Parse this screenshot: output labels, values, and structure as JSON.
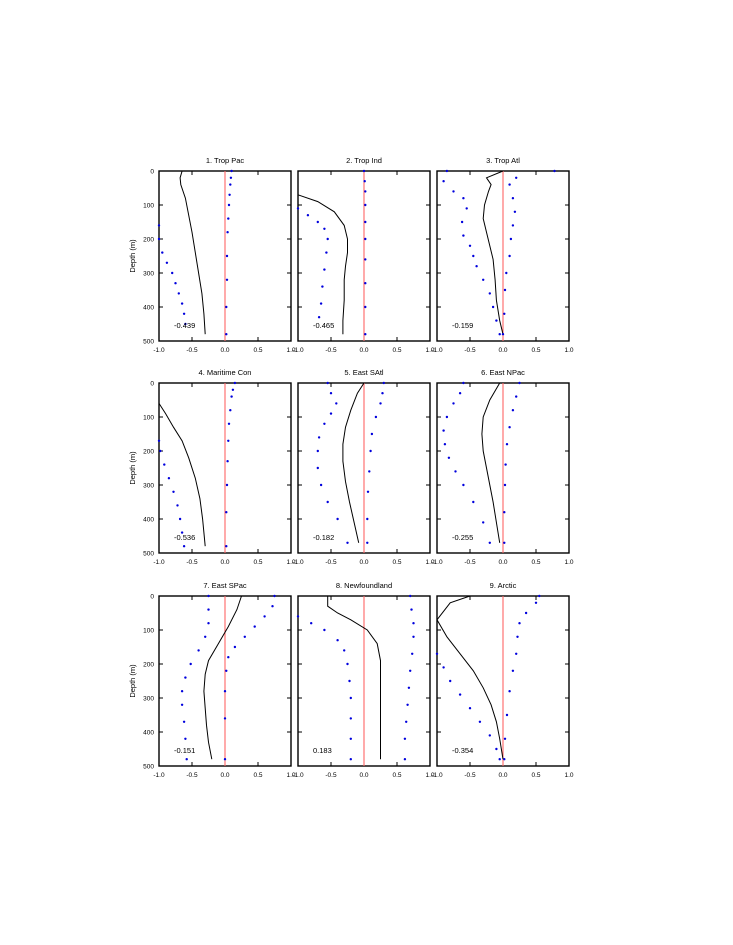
{
  "chart_data": [
    {
      "type": "line",
      "title": "1. Trop Pac",
      "ylabel": "Depth (m)",
      "xlabel": "",
      "xlim": [
        -1,
        1
      ],
      "ylim": [
        500,
        0
      ],
      "xticks": [
        "-1.0",
        "-0.5",
        "0.0",
        "0.5",
        "1.0"
      ],
      "yticks": [
        "0",
        "100",
        "200",
        "300",
        "400",
        "500"
      ],
      "annotation": "-0.439",
      "zero_line_color": "#ff6666",
      "series": [
        {
          "style": "solid",
          "color": "#000000",
          "x": [
            -0.65,
            -0.68,
            -0.67,
            -0.6,
            -0.55,
            -0.5,
            -0.45,
            -0.4,
            -0.35,
            -0.32,
            -0.3
          ],
          "y": [
            0,
            20,
            40,
            80,
            130,
            180,
            240,
            300,
            360,
            420,
            480
          ]
        },
        {
          "style": "dotted",
          "color": "#0000dd",
          "x": [
            -1.0,
            -1.0,
            -0.95,
            -0.88,
            -0.8,
            -0.75,
            -0.7,
            -0.65,
            -0.62,
            -0.6
          ],
          "y": [
            160,
            200,
            240,
            270,
            300,
            330,
            360,
            390,
            420,
            450
          ]
        },
        {
          "style": "dotted",
          "color": "#0000dd",
          "x": [
            0.1,
            0.09,
            0.08,
            0.07,
            0.06,
            0.05,
            0.04,
            0.03,
            0.03,
            0.02,
            0.02
          ],
          "y": [
            0,
            20,
            40,
            70,
            100,
            140,
            180,
            250,
            320,
            400,
            480
          ]
        }
      ]
    },
    {
      "type": "line",
      "title": "2. Trop Ind",
      "ylabel": "",
      "xlabel": "",
      "xlim": [
        -1,
        1
      ],
      "ylim": [
        500,
        0
      ],
      "xticks": [
        "-1.0",
        "-0.5",
        "0.0",
        "0.5",
        "1.0"
      ],
      "yticks": [],
      "annotation": "-0.465",
      "zero_line_color": "#ff6666",
      "series": [
        {
          "style": "solid",
          "color": "#000000",
          "x": [
            -1.0,
            -0.7,
            -0.45,
            -0.3,
            -0.25,
            -0.25,
            -0.28,
            -0.3,
            -0.3,
            -0.32,
            -0.32
          ],
          "y": [
            70,
            90,
            120,
            160,
            200,
            240,
            280,
            320,
            380,
            440,
            480
          ]
        },
        {
          "style": "dotted",
          "color": "#0000dd",
          "x": [
            -1.0,
            -0.85,
            -0.7,
            -0.6,
            -0.55,
            -0.57,
            -0.6,
            -0.63,
            -0.65,
            -0.68
          ],
          "y": [
            110,
            130,
            150,
            170,
            200,
            240,
            290,
            340,
            390,
            430
          ]
        },
        {
          "style": "dotted",
          "color": "#0000dd",
          "x": [
            0.0,
            0.01,
            0.02,
            0.02,
            0.02,
            0.02,
            0.02,
            0.02,
            0.02,
            0.02
          ],
          "y": [
            0,
            30,
            60,
            100,
            150,
            200,
            260,
            330,
            400,
            480
          ]
        }
      ]
    },
    {
      "type": "line",
      "title": "3. Trop Atl",
      "ylabel": "",
      "xlabel": "",
      "xlim": [
        -1,
        1
      ],
      "ylim": [
        500,
        0
      ],
      "xticks": [
        "-1.0",
        "-0.5",
        "0.0",
        "0.5",
        "1.0"
      ],
      "yticks": [],
      "annotation": "-0.159",
      "zero_line_color": "#ff6666",
      "series": [
        {
          "style": "solid",
          "color": "#000000",
          "x": [
            0.0,
            -0.25,
            -0.18,
            -0.22,
            -0.28,
            -0.3,
            -0.25,
            -0.15,
            -0.12,
            -0.1,
            -0.05,
            0.0
          ],
          "y": [
            0,
            20,
            40,
            60,
            100,
            140,
            180,
            260,
            320,
            380,
            440,
            480
          ]
        },
        {
          "style": "dotted",
          "color": "#0000dd",
          "x": [
            -0.85,
            -0.9,
            -0.75,
            -0.6,
            -0.55,
            -0.62,
            -0.6,
            -0.5,
            -0.45,
            -0.4,
            -0.3,
            -0.2,
            -0.15,
            -0.1,
            -0.05
          ],
          "y": [
            0,
            30,
            60,
            80,
            110,
            150,
            190,
            220,
            250,
            280,
            320,
            360,
            400,
            440,
            480
          ]
        },
        {
          "style": "dotted",
          "color": "#0000dd",
          "x": [
            0.78,
            0.2,
            0.1,
            0.15,
            0.18,
            0.15,
            0.12,
            0.1,
            0.05,
            0.03,
            0.02,
            0.0
          ],
          "y": [
            0,
            20,
            40,
            80,
            120,
            160,
            200,
            250,
            300,
            350,
            420,
            480
          ]
        }
      ]
    },
    {
      "type": "line",
      "title": "4. Maritime Con",
      "ylabel": "Depth (m)",
      "xlabel": "",
      "xlim": [
        -1,
        1
      ],
      "ylim": [
        500,
        0
      ],
      "xticks": [
        "-1.0",
        "-0.5",
        "0.0",
        "0.5",
        "1.0"
      ],
      "yticks": [
        "0",
        "100",
        "200",
        "300",
        "400",
        "500"
      ],
      "annotation": "-0.536",
      "zero_line_color": "#ff6666",
      "series": [
        {
          "style": "solid",
          "color": "#000000",
          "x": [
            -1.0,
            -0.9,
            -0.78,
            -0.65,
            -0.55,
            -0.45,
            -0.38,
            -0.34,
            -0.32,
            -0.3
          ],
          "y": [
            60,
            90,
            130,
            170,
            220,
            280,
            340,
            400,
            440,
            480
          ]
        },
        {
          "style": "dotted",
          "color": "#0000dd",
          "x": [
            -1.0,
            -0.98,
            -0.92,
            -0.85,
            -0.78,
            -0.72,
            -0.68,
            -0.65,
            -0.62
          ],
          "y": [
            170,
            200,
            240,
            280,
            320,
            360,
            400,
            440,
            480
          ]
        },
        {
          "style": "dotted",
          "color": "#0000dd",
          "x": [
            0.15,
            0.12,
            0.1,
            0.08,
            0.06,
            0.05,
            0.04,
            0.03,
            0.02,
            0.02
          ],
          "y": [
            0,
            20,
            40,
            80,
            120,
            170,
            230,
            300,
            380,
            480
          ]
        }
      ]
    },
    {
      "type": "line",
      "title": "5. East SAtl",
      "ylabel": "",
      "xlabel": "",
      "xlim": [
        -1,
        1
      ],
      "ylim": [
        500,
        0
      ],
      "xticks": [
        "-1.0",
        "-0.5",
        "0.0",
        "0.5",
        "1.0"
      ],
      "yticks": [],
      "annotation": "-0.182",
      "zero_line_color": "#ff6666",
      "series": [
        {
          "style": "solid",
          "color": "#000000",
          "x": [
            0.0,
            -0.1,
            -0.2,
            -0.28,
            -0.32,
            -0.32,
            -0.28,
            -0.22,
            -0.15,
            -0.08
          ],
          "y": [
            0,
            30,
            80,
            130,
            180,
            230,
            290,
            350,
            410,
            470
          ]
        },
        {
          "style": "dotted",
          "color": "#0000dd",
          "x": [
            -0.55,
            -0.5,
            -0.42,
            -0.5,
            -0.6,
            -0.68,
            -0.7,
            -0.7,
            -0.65,
            -0.55,
            -0.4,
            -0.25
          ],
          "y": [
            0,
            30,
            60,
            90,
            120,
            160,
            200,
            250,
            300,
            350,
            400,
            470
          ]
        },
        {
          "style": "dotted",
          "color": "#0000dd",
          "x": [
            0.3,
            0.28,
            0.25,
            0.18,
            0.12,
            0.1,
            0.08,
            0.06,
            0.05,
            0.05
          ],
          "y": [
            0,
            30,
            60,
            100,
            150,
            200,
            260,
            320,
            400,
            470
          ]
        }
      ]
    },
    {
      "type": "line",
      "title": "6. East NPac",
      "ylabel": "",
      "xlabel": "",
      "xlim": [
        -1,
        1
      ],
      "ylim": [
        500,
        0
      ],
      "xticks": [
        "-1.0",
        "-0.5",
        "0.0",
        "0.5",
        "1.0"
      ],
      "yticks": [],
      "annotation": "-0.255",
      "zero_line_color": "#ff6666",
      "series": [
        {
          "style": "solid",
          "color": "#000000",
          "x": [
            -0.05,
            -0.2,
            -0.3,
            -0.32,
            -0.3,
            -0.25,
            -0.2,
            -0.15,
            -0.1,
            -0.05
          ],
          "y": [
            0,
            50,
            100,
            150,
            200,
            250,
            300,
            350,
            410,
            470
          ]
        },
        {
          "style": "dotted",
          "color": "#0000dd",
          "x": [
            -0.6,
            -0.65,
            -0.75,
            -0.85,
            -0.9,
            -0.88,
            -0.82,
            -0.72,
            -0.6,
            -0.45,
            -0.3,
            -0.2
          ],
          "y": [
            0,
            30,
            60,
            100,
            140,
            180,
            220,
            260,
            300,
            350,
            410,
            470
          ]
        },
        {
          "style": "dotted",
          "color": "#0000dd",
          "x": [
            0.25,
            0.2,
            0.15,
            0.1,
            0.06,
            0.04,
            0.03,
            0.02,
            0.02
          ],
          "y": [
            0,
            40,
            80,
            130,
            180,
            240,
            300,
            380,
            470
          ]
        }
      ]
    },
    {
      "type": "line",
      "title": "7. East SPac",
      "ylabel": "Depth (m)",
      "xlabel": "",
      "xlim": [
        -1,
        1
      ],
      "ylim": [
        500,
        0
      ],
      "xticks": [
        "-1.0",
        "-0.5",
        "0.0",
        "0.5",
        "1.0"
      ],
      "yticks": [
        "0",
        "100",
        "200",
        "300",
        "400",
        "500"
      ],
      "annotation": "-0.151",
      "zero_line_color": "#ff6666",
      "series": [
        {
          "style": "solid",
          "color": "#000000",
          "x": [
            0.25,
            0.18,
            0.05,
            -0.1,
            -0.25,
            -0.3,
            -0.32,
            -0.3,
            -0.28,
            -0.25,
            -0.2
          ],
          "y": [
            0,
            40,
            90,
            140,
            190,
            230,
            280,
            330,
            380,
            430,
            480
          ]
        },
        {
          "style": "dotted",
          "color": "#0000dd",
          "x": [
            -0.25,
            -0.25,
            -0.25,
            -0.3,
            -0.4,
            -0.52,
            -0.6,
            -0.65,
            -0.65,
            -0.62,
            -0.6,
            -0.58
          ],
          "y": [
            0,
            40,
            80,
            120,
            160,
            200,
            240,
            280,
            320,
            370,
            420,
            480
          ]
        },
        {
          "style": "dotted",
          "color": "#0000dd",
          "x": [
            0.75,
            0.72,
            0.6,
            0.45,
            0.3,
            0.15,
            0.05,
            0.02,
            0.0,
            0.0,
            0.0
          ],
          "y": [
            0,
            30,
            60,
            90,
            120,
            150,
            180,
            220,
            280,
            360,
            480
          ]
        }
      ]
    },
    {
      "type": "line",
      "title": "8. Newfoundland",
      "ylabel": "",
      "xlabel": "",
      "xlim": [
        -1,
        1
      ],
      "ylim": [
        500,
        0
      ],
      "xticks": [
        "-1.0",
        "-0.5",
        "0.0",
        "0.5",
        "1.0"
      ],
      "yticks": [],
      "annotation": "0.183",
      "zero_line_color": "#ff6666",
      "series": [
        {
          "style": "solid",
          "color": "#000000",
          "x": [
            -0.55,
            -0.55,
            -0.4,
            -0.2,
            0.05,
            0.2,
            0.25,
            0.25,
            0.25,
            0.25,
            0.25
          ],
          "y": [
            0,
            30,
            50,
            70,
            100,
            140,
            190,
            250,
            320,
            400,
            480
          ]
        },
        {
          "style": "dotted",
          "color": "#0000dd",
          "x": [
            -1.0,
            -0.8,
            -0.6,
            -0.4,
            -0.3,
            -0.25,
            -0.22,
            -0.2,
            -0.2,
            -0.2,
            -0.2
          ],
          "y": [
            60,
            80,
            100,
            130,
            160,
            200,
            250,
            300,
            360,
            420,
            480
          ]
        },
        {
          "style": "dotted",
          "color": "#0000dd",
          "x": [
            0.7,
            0.72,
            0.75,
            0.75,
            0.73,
            0.7,
            0.68,
            0.66,
            0.64,
            0.62,
            0.62
          ],
          "y": [
            0,
            40,
            80,
            120,
            170,
            220,
            270,
            320,
            370,
            420,
            480
          ]
        }
      ]
    },
    {
      "type": "line",
      "title": "9. Arctic",
      "ylabel": "",
      "xlabel": "",
      "xlim": [
        -1,
        1
      ],
      "ylim": [
        500,
        0
      ],
      "xticks": [
        "-1.0",
        "-0.5",
        "0.0",
        "0.5",
        "1.0"
      ],
      "yticks": [],
      "annotation": "-0.354",
      "zero_line_color": "#ff6666",
      "series": [
        {
          "style": "solid",
          "color": "#000000",
          "x": [
            -0.5,
            -0.8,
            -1.0,
            -0.85,
            -0.65,
            -0.45,
            -0.3,
            -0.18,
            -0.1,
            -0.05,
            0.0
          ],
          "y": [
            0,
            20,
            70,
            120,
            170,
            220,
            270,
            320,
            370,
            420,
            480
          ]
        },
        {
          "style": "dotted",
          "color": "#0000dd",
          "x": [
            -1.0,
            -0.9,
            -0.8,
            -0.65,
            -0.5,
            -0.35,
            -0.2,
            -0.1,
            -0.05
          ],
          "y": [
            170,
            210,
            250,
            290,
            330,
            370,
            410,
            450,
            480
          ]
        },
        {
          "style": "dotted",
          "color": "#0000dd",
          "x": [
            0.55,
            0.5,
            0.35,
            0.25,
            0.22,
            0.2,
            0.15,
            0.1,
            0.06,
            0.03,
            0.02
          ],
          "y": [
            0,
            20,
            50,
            80,
            120,
            170,
            220,
            280,
            350,
            420,
            480
          ]
        }
      ]
    }
  ]
}
